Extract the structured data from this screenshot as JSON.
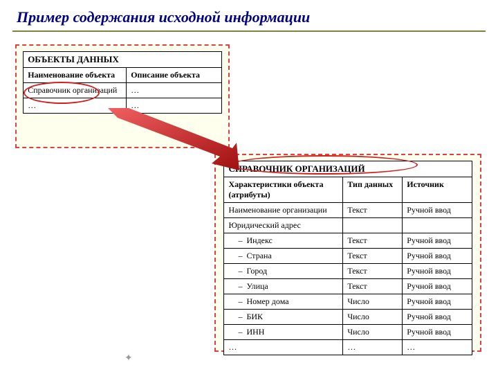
{
  "slide": {
    "title": "Пример содержания исходной информации",
    "title_color": "#000080",
    "underline_color": "#808040",
    "dashed_border_color": "#e04040",
    "frame_bg": "#ffffee",
    "ellipse_color": "#d02020",
    "arrow_color": "#d02020"
  },
  "table1": {
    "title": "ОБЪЕКТЫ ДАННЫХ",
    "headers": [
      "Наименование объекта",
      "Описание объекта"
    ],
    "rows": [
      [
        "Справочник организаций",
        "…"
      ],
      [
        "…",
        "…"
      ]
    ],
    "col_widths": [
      "52%",
      "48%"
    ]
  },
  "table2": {
    "title": "СПРАВОЧНИК ОРГАНИЗАЦИЙ",
    "headers": [
      "Характеристики объекта (атрибуты)",
      "Тип данных",
      "Источник"
    ],
    "col_widths": [
      "48%",
      "24%",
      "28%"
    ],
    "rows": [
      {
        "attr": "Наименование организации",
        "indent": false,
        "type": "Текст",
        "src": "Ручной ввод"
      },
      {
        "attr": "Юридический адрес",
        "indent": false,
        "type": "",
        "src": ""
      },
      {
        "attr": "Индекс",
        "indent": true,
        "type": "Текст",
        "src": "Ручной ввод"
      },
      {
        "attr": "Страна",
        "indent": true,
        "type": "Текст",
        "src": "Ручной ввод"
      },
      {
        "attr": "Город",
        "indent": true,
        "type": "Текст",
        "src": "Ручной ввод"
      },
      {
        "attr": "Улица",
        "indent": true,
        "type": "Текст",
        "src": "Ручной ввод"
      },
      {
        "attr": "Номер дома",
        "indent": true,
        "type": "Число",
        "src": "Ручной ввод"
      },
      {
        "attr": "БИК",
        "indent": true,
        "type": "Число",
        "src": "Ручной ввод"
      },
      {
        "attr": "ИНН",
        "indent": true,
        "type": "Число",
        "src": "Ручной ввод"
      },
      {
        "attr": "…",
        "indent": false,
        "type": "…",
        "src": "…"
      }
    ]
  }
}
